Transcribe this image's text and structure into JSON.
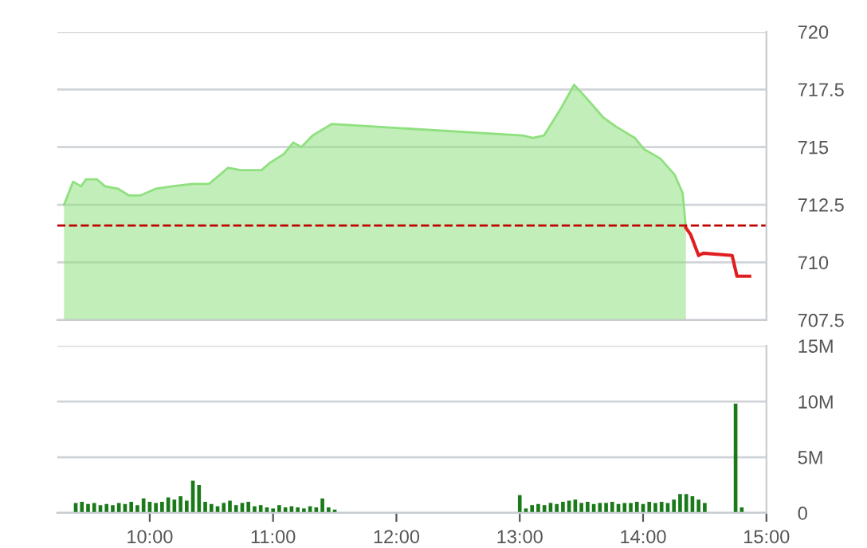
{
  "chart_data": [
    {
      "type": "area",
      "xlim": [
        9.25,
        15
      ],
      "ylim": [
        707.5,
        720
      ],
      "yticks": [
        707.5,
        710,
        712.5,
        715,
        717.5,
        720
      ],
      "tick_labels": "y",
      "grid": "y",
      "ref_lines": [
        {
          "axis": "y",
          "value": 711.6,
          "color": "#c00000",
          "line_style": "dashed"
        }
      ],
      "series": [
        {
          "type": "area",
          "color": "#8fe07f",
          "x": [
            9.305,
            9.379,
            9.444,
            9.483,
            9.573,
            9.638,
            9.741,
            9.832,
            9.922,
            10.052,
            10.181,
            10.349,
            10.479,
            10.569,
            10.634,
            10.737,
            10.906,
            10.97,
            11.087,
            11.164,
            11.229,
            11.32,
            11.475,
            13.027,
            13.105,
            13.196,
            13.325,
            13.441,
            13.545,
            13.674,
            13.777,
            13.933,
            14.01,
            14.14,
            14.256,
            14.321,
            14.347
          ],
          "values": [
            712.5,
            713.5,
            713.3,
            713.6,
            713.6,
            713.3,
            713.2,
            712.9,
            712.9,
            713.2,
            713.3,
            713.4,
            713.4,
            713.8,
            714.1,
            714.0,
            714.0,
            714.3,
            714.7,
            715.2,
            715.0,
            715.5,
            716.0,
            715.5,
            715.4,
            715.5,
            716.6,
            717.7,
            717.1,
            716.3,
            715.9,
            715.4,
            714.9,
            714.5,
            713.8,
            713.0,
            711.5
          ]
        },
        {
          "type": "line",
          "color": "#e02020",
          "x": [
            14.347,
            14.386,
            14.45,
            14.489,
            14.722,
            14.761,
            14.864
          ],
          "values": [
            711.5,
            711.2,
            710.3,
            710.4,
            710.3,
            709.4,
            709.4
          ]
        }
      ]
    },
    {
      "type": "bar",
      "xlim": [
        9.25,
        15
      ],
      "xticks": [
        {
          "value": 10,
          "label": "10:00"
        },
        {
          "value": 11,
          "label": "11:00"
        },
        {
          "value": 12,
          "label": "12:00"
        },
        {
          "value": 13,
          "label": "13:00"
        },
        {
          "value": 14,
          "label": "14:00"
        },
        {
          "value": 15,
          "label": "15:00"
        }
      ],
      "ylim": [
        0,
        15
      ],
      "yticks": [
        0,
        {
          "value": 5,
          "label": "5M"
        },
        {
          "value": 10,
          "label": "10M"
        },
        {
          "value": 15,
          "label": "15M"
        }
      ],
      "grid": "y",
      "series": [
        {
          "color": "#1a7a1a",
          "x": [
            9.4,
            9.45,
            9.5,
            9.55,
            9.6,
            9.65,
            9.7,
            9.75,
            9.8,
            9.85,
            9.9,
            9.95,
            10.0,
            10.05,
            10.1,
            10.15,
            10.2,
            10.25,
            10.3,
            10.35,
            10.4,
            10.45,
            10.5,
            10.55,
            10.6,
            10.65,
            10.7,
            10.75,
            10.8,
            10.85,
            10.9,
            10.95,
            11.0,
            11.05,
            11.1,
            11.15,
            11.2,
            11.25,
            11.3,
            11.35,
            11.4,
            11.45,
            11.5,
            13.0,
            13.05,
            13.1,
            13.15,
            13.2,
            13.25,
            13.3,
            13.35,
            13.4,
            13.45,
            13.5,
            13.55,
            13.6,
            13.65,
            13.7,
            13.75,
            13.8,
            13.85,
            13.9,
            13.95,
            14.0,
            14.05,
            14.1,
            14.15,
            14.2,
            14.25,
            14.3,
            14.35,
            14.4,
            14.45,
            14.5,
            14.75,
            14.8
          ],
          "values": [
            0.9,
            1.0,
            0.8,
            0.9,
            0.7,
            0.8,
            0.7,
            0.9,
            0.8,
            1.0,
            0.7,
            1.3,
            1.0,
            0.9,
            1.0,
            1.4,
            1.2,
            1.5,
            1.1,
            2.9,
            2.5,
            1.0,
            0.8,
            0.6,
            0.9,
            1.1,
            0.7,
            0.9,
            1.0,
            0.6,
            0.7,
            0.5,
            0.4,
            0.7,
            0.5,
            0.6,
            0.5,
            0.4,
            0.6,
            0.5,
            1.3,
            0.5,
            0.3,
            1.6,
            0.4,
            0.7,
            0.8,
            0.7,
            0.9,
            0.8,
            1.0,
            1.1,
            1.2,
            0.9,
            1.0,
            0.8,
            0.9,
            0.9,
            1.0,
            0.8,
            0.9,
            0.9,
            1.0,
            0.8,
            1.0,
            0.9,
            1.0,
            0.9,
            1.2,
            1.7,
            1.7,
            1.5,
            1.2,
            0.9,
            9.8,
            0.5
          ]
        }
      ]
    }
  ]
}
